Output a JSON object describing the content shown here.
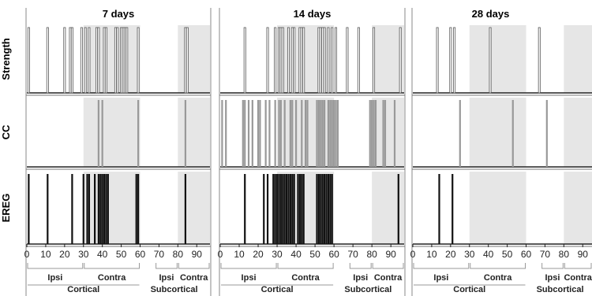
{
  "chart_data": {
    "type": "bar",
    "description_free": true,
    "xlim": [
      0,
      97
    ],
    "x_ticks": [
      0,
      10,
      20,
      30,
      40,
      50,
      60,
      70,
      80,
      90
    ],
    "row_labels": [
      "Strength",
      "CC",
      "EREG"
    ],
    "region_brackets": [
      {
        "label": "Ipsi",
        "from": 0,
        "to": 30
      },
      {
        "label": "Contra",
        "from": 30,
        "to": 60
      },
      {
        "label": "Ipsi",
        "from": 80,
        "to": 97,
        "third_label": "Contra"
      }
    ],
    "panels": [
      {
        "title": "7 days",
        "shaded": [
          [
            30,
            60
          ],
          [
            80,
            97
          ]
        ],
        "strength": [
          1,
          11,
          20,
          23,
          24,
          29,
          31,
          33,
          37,
          38,
          41,
          42,
          47,
          48,
          50,
          51,
          52,
          53,
          59,
          84,
          85
        ],
        "cc": [
          38,
          40,
          59,
          84
        ],
        "ereg": [
          1,
          11,
          24,
          30,
          32,
          33,
          36,
          38,
          39,
          40,
          41,
          42,
          43,
          58,
          59,
          84
        ]
      },
      {
        "title": "14 days",
        "shaded": [
          [
            30,
            60
          ],
          [
            80,
            97
          ]
        ],
        "strength": [
          13,
          25,
          29,
          31,
          32,
          33,
          36,
          38,
          39,
          42,
          43,
          44,
          52,
          53,
          54,
          55,
          57,
          59,
          61,
          67,
          73,
          81,
          95
        ],
        "cc": [
          1,
          3,
          12,
          13,
          15,
          17,
          20,
          21,
          24,
          26,
          29,
          31,
          32,
          34,
          37,
          38,
          40,
          43,
          45,
          46,
          51,
          52,
          53,
          54,
          55,
          57,
          58,
          59,
          60,
          61,
          62,
          79,
          80,
          81,
          82,
          86,
          87,
          92
        ],
        "ereg": [
          13,
          23,
          25,
          28,
          29,
          30,
          31,
          32,
          33,
          34,
          35,
          36,
          37,
          38,
          39,
          41,
          42,
          43,
          44,
          51,
          52,
          53,
          54,
          55,
          56,
          57,
          58,
          59,
          94
        ]
      },
      {
        "title": "28 days",
        "shaded": [
          [
            30,
            60
          ],
          [
            80,
            97
          ]
        ],
        "strength": [
          13,
          20,
          22,
          41,
          67
        ],
        "cc": [
          25,
          53,
          71
        ],
        "ereg": [
          14,
          21
        ]
      }
    ],
    "group_labels": {
      "ipsi": "Ipsi",
      "contra": "Contra",
      "cortical": "Cortical",
      "subcortical": "Subcortical"
    }
  }
}
